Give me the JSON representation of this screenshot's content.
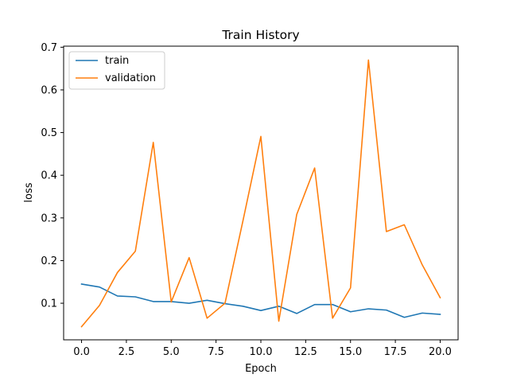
{
  "chart_data": {
    "type": "line",
    "title": "Train History",
    "xlabel": "Epoch",
    "ylabel": "loss",
    "xlim": [
      -1.0,
      21.0
    ],
    "ylim": [
      0.0143,
      0.7025
    ],
    "x_ticks": [
      0.0,
      2.5,
      5.0,
      7.5,
      10.0,
      12.5,
      15.0,
      17.5,
      20.0
    ],
    "x_tick_labels": [
      "0.0",
      "2.5",
      "5.0",
      "7.5",
      "10.0",
      "12.5",
      "15.0",
      "17.5",
      "20.0"
    ],
    "y_ticks": [
      0.1,
      0.2,
      0.3,
      0.4,
      0.5,
      0.6,
      0.7
    ],
    "y_tick_labels": [
      "0.1",
      "0.2",
      "0.3",
      "0.4",
      "0.5",
      "0.6",
      "0.7"
    ],
    "grid": false,
    "legend_position": "upper-left",
    "x": [
      0,
      1,
      2,
      3,
      4,
      5,
      6,
      7,
      8,
      9,
      10,
      11,
      12,
      13,
      14,
      15,
      16,
      17,
      18,
      19,
      20
    ],
    "series": [
      {
        "name": "train",
        "color": "#1f77b4",
        "values": [
          0.145,
          0.138,
          0.117,
          0.115,
          0.104,
          0.104,
          0.1,
          0.107,
          0.099,
          0.093,
          0.083,
          0.093,
          0.076,
          0.097,
          0.097,
          0.08,
          0.087,
          0.084,
          0.067,
          0.077,
          0.074
        ]
      },
      {
        "name": "validation",
        "color": "#ff7f0e",
        "values": [
          0.045,
          0.095,
          0.172,
          0.222,
          0.477,
          0.103,
          0.207,
          0.065,
          0.1,
          0.293,
          0.491,
          0.058,
          0.308,
          0.417,
          0.065,
          0.136,
          0.67,
          0.268,
          0.284,
          0.19,
          0.113
        ]
      }
    ]
  }
}
